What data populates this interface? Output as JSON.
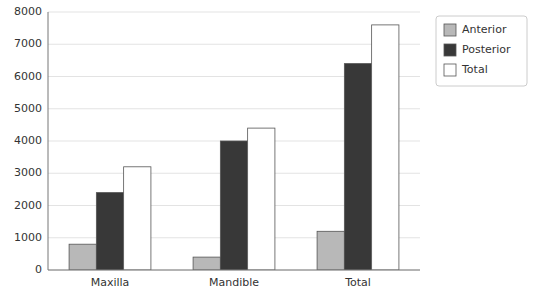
{
  "chart_data": {
    "type": "bar",
    "categories": [
      "Maxilla",
      "Mandible",
      "Total"
    ],
    "series": [
      {
        "name": "Anterior",
        "color": "#b8b8b8",
        "values": [
          800,
          400,
          1200
        ]
      },
      {
        "name": "Posterior",
        "color": "#383838",
        "values": [
          2400,
          4000,
          6400
        ]
      },
      {
        "name": "Total",
        "color": "#ffffff",
        "values": [
          3200,
          4400,
          7600
        ]
      }
    ],
    "ylim": [
      0,
      8000
    ],
    "yticks": [
      0,
      1000,
      2000,
      3000,
      4000,
      5000,
      6000,
      7000,
      8000
    ],
    "grid": true,
    "legend": "right"
  }
}
